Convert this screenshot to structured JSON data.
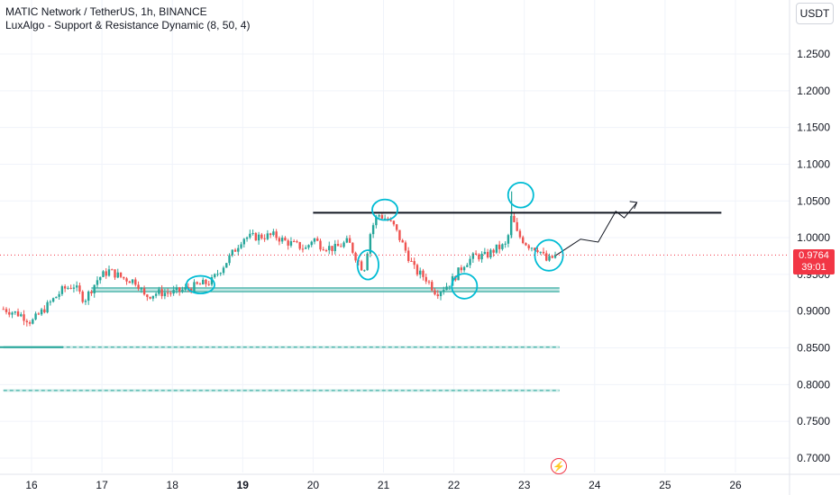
{
  "legend": {
    "symbol": "MATIC Network / TetherUS, 1h, BINANCE",
    "indicator": "LuxAlgo - Support & Resistance Dynamic (8, 50, 4)"
  },
  "currency": "USDT",
  "last_price": "0.9764",
  "countdown": "39:01",
  "lightning_icon": "⚡",
  "colors": {
    "up": "#26a69a",
    "down": "#ef5350",
    "annotation": "#00bcd4",
    "last_price": "#f23645"
  },
  "chart_data": {
    "type": "candlestick",
    "yaxis": {
      "ticks": [
        "1.2500",
        "1.2000",
        "1.1500",
        "1.1000",
        "1.0500",
        "1.0000",
        "0.9500",
        "0.9000",
        "0.8500",
        "0.8000",
        "0.7500",
        "0.7000"
      ],
      "ylim": [
        0.685,
        1.295
      ]
    },
    "xaxis": {
      "ticks": [
        "16",
        "17",
        "18",
        "19",
        "20",
        "21",
        "22",
        "23",
        "24",
        "25",
        "26"
      ],
      "bold_ticks": [
        "19"
      ]
    },
    "price_path": [
      [
        15.6,
        0.903
      ],
      [
        15.85,
        0.895
      ],
      [
        16.0,
        0.885
      ],
      [
        16.2,
        0.905
      ],
      [
        16.45,
        0.93
      ],
      [
        16.6,
        0.935
      ],
      [
        16.75,
        0.915
      ],
      [
        16.95,
        0.945
      ],
      [
        17.1,
        0.955
      ],
      [
        17.3,
        0.945
      ],
      [
        17.5,
        0.94
      ],
      [
        17.6,
        0.92
      ],
      [
        17.8,
        0.925
      ],
      [
        18.0,
        0.925
      ],
      [
        18.2,
        0.93
      ],
      [
        18.35,
        0.935
      ],
      [
        18.55,
        0.94
      ],
      [
        18.75,
        0.965
      ],
      [
        18.9,
        0.985
      ],
      [
        19.0,
        1.0
      ],
      [
        19.3,
        1.002
      ],
      [
        19.45,
        1.003
      ],
      [
        19.6,
        0.995
      ],
      [
        19.75,
        0.99
      ],
      [
        19.9,
        0.985
      ],
      [
        20.0,
        1.0
      ],
      [
        20.1,
        0.99
      ],
      [
        20.3,
        0.985
      ],
      [
        20.5,
        0.995
      ],
      [
        20.6,
        0.975
      ],
      [
        20.72,
        0.955
      ],
      [
        20.82,
        1.01
      ],
      [
        20.92,
        1.032
      ],
      [
        21.05,
        1.025
      ],
      [
        21.15,
        1.015
      ],
      [
        21.3,
        0.985
      ],
      [
        21.45,
        0.955
      ],
      [
        21.6,
        0.945
      ],
      [
        21.75,
        0.925
      ],
      [
        21.9,
        0.935
      ],
      [
        22.0,
        0.945
      ],
      [
        22.15,
        0.965
      ],
      [
        22.3,
        0.975
      ],
      [
        22.45,
        0.975
      ],
      [
        22.6,
        0.985
      ],
      [
        22.75,
        0.99
      ],
      [
        22.82,
        1.03
      ],
      [
        22.9,
        1.005
      ],
      [
        23.05,
        0.99
      ],
      [
        23.2,
        0.985
      ],
      [
        23.32,
        0.968
      ],
      [
        23.45,
        0.976
      ]
    ],
    "support_resistance_levels": [
      {
        "price": 0.929,
        "from": 16.85,
        "to": 23.5,
        "style": "band"
      },
      {
        "price": 0.851,
        "from": 15.6,
        "to": 23.5,
        "style": "dashed"
      },
      {
        "price": 0.792,
        "from": 15.6,
        "to": 23.5,
        "style": "dashed"
      }
    ],
    "resistance_line": {
      "price": 1.034,
      "from": 20.0,
      "to": 25.8
    },
    "projection_path": [
      [
        23.45,
        0.976
      ],
      [
        23.8,
        0.998
      ],
      [
        24.05,
        0.994
      ],
      [
        24.3,
        1.036
      ],
      [
        24.42,
        1.027
      ],
      [
        24.6,
        1.048
      ]
    ],
    "annotation_ellipses": [
      {
        "x": 18.4,
        "y": 0.936,
        "rx": 0.2,
        "ry": 0.012
      },
      {
        "x": 20.05,
        "y": 0.0,
        "rx": 0.0,
        "ry": 0.0
      },
      {
        "x": 20.78,
        "y": 0.963,
        "rx": 0.15,
        "ry": 0.02
      },
      {
        "x": 21.02,
        "y": 1.038,
        "rx": 0.18,
        "ry": 0.014
      },
      {
        "x": 22.15,
        "y": 0.934,
        "rx": 0.18,
        "ry": 0.017
      },
      {
        "x": 22.95,
        "y": 1.058,
        "rx": 0.18,
        "ry": 0.017
      },
      {
        "x": 23.35,
        "y": 0.976,
        "rx": 0.2,
        "ry": 0.021
      }
    ],
    "last_price_value": 0.9764
  }
}
